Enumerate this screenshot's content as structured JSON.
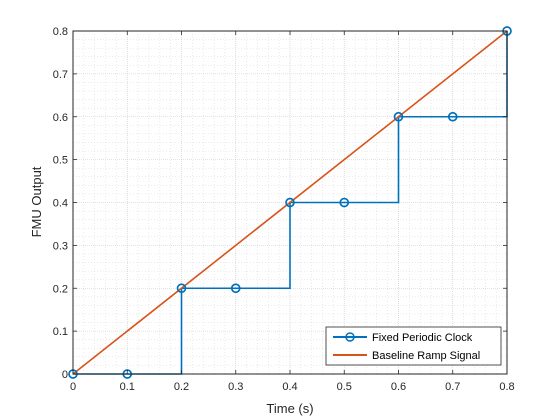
{
  "chart_data": {
    "type": "line",
    "title": "",
    "xlabel": "Time (s)",
    "ylabel": "FMU Output",
    "xlim": [
      0,
      0.8
    ],
    "ylim": [
      0,
      0.8
    ],
    "xticks": [
      0,
      0.1,
      0.2,
      0.3,
      0.4,
      0.5,
      0.6,
      0.7,
      0.8
    ],
    "yticks": [
      0,
      0.1,
      0.2,
      0.3,
      0.4,
      0.5,
      0.6,
      0.7,
      0.8
    ],
    "xtick_labels": [
      "0",
      "0.1",
      "0.2",
      "0.3",
      "0.4",
      "0.5",
      "0.6",
      "0.7",
      "0.8"
    ],
    "ytick_labels": [
      "0",
      "0.1",
      "0.2",
      "0.3",
      "0.4",
      "0.5",
      "0.6",
      "0.7",
      "0.8"
    ],
    "grid": true,
    "minor_grid": true,
    "legend_location": "bottom-right",
    "series": [
      {
        "name": "Fixed Periodic Clock",
        "style": "stairs",
        "marker": "circle",
        "color": "#0072BD",
        "x": [
          0,
          0.1,
          0.2,
          0.3,
          0.4,
          0.5,
          0.6,
          0.7,
          0.8
        ],
        "y": [
          0,
          0,
          0.2,
          0.2,
          0.4,
          0.4,
          0.6,
          0.6,
          0.8
        ]
      },
      {
        "name": "Baseline Ramp Signal",
        "style": "line",
        "marker": "none",
        "color": "#D95319",
        "x": [
          0,
          0.8
        ],
        "y": [
          0,
          0.8
        ]
      }
    ]
  }
}
